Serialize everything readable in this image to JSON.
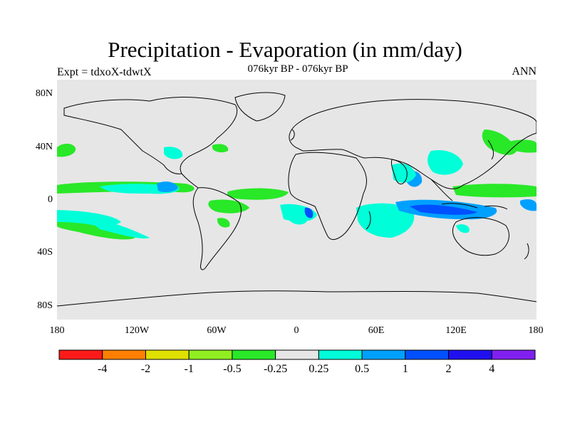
{
  "title": "Precipitation - Evaporation (in mm/day)",
  "subtitle": "076kyr BP - 076kyr BP",
  "left_string": "Expt = tdxoX-tdwtX",
  "right_string": "ANN",
  "y_ticks": [
    "80N",
    "40N",
    "0",
    "40S",
    "80S"
  ],
  "x_ticks": [
    "180",
    "120W",
    "60W",
    "0",
    "60E",
    "120E",
    "180"
  ],
  "colorbar": {
    "colors": [
      "#ff1a1a",
      "#ff8000",
      "#e0e000",
      "#90ee20",
      "#28e828",
      "#e6e6e6",
      "#00ffd9",
      "#00a0ff",
      "#0050ff",
      "#2010f0",
      "#8020f0"
    ],
    "labels": [
      "-4",
      "-2",
      "-1",
      "-0.5",
      "-0.25",
      "0.25",
      "0.5",
      "1",
      "2",
      "4"
    ]
  }
}
